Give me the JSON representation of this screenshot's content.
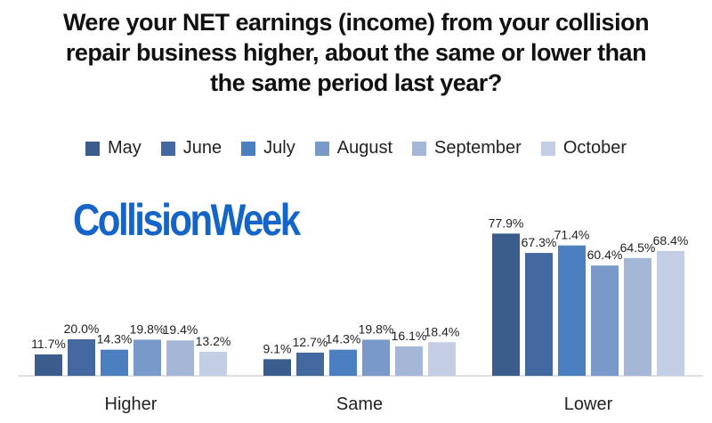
{
  "title_lines": [
    "Were your NET earnings (income) from your collision",
    "repair business higher, about the same or lower than",
    "the same period last year?"
  ],
  "logo_text": "CollisionWeek",
  "colors": {
    "May": "#3b5d8d",
    "June": "#4469a0",
    "July": "#4b7fc0",
    "August": "#7899c9",
    "September": "#a5b7d6",
    "October": "#c3cde4",
    "logo": "#1565c9"
  },
  "chart_data": {
    "type": "bar",
    "title": "Were your NET earnings (income) from your collision repair business higher, about the same or lower than the same period last year?",
    "categories": [
      "Higher",
      "Same",
      "Lower"
    ],
    "series": [
      {
        "name": "May",
        "values": [
          11.7,
          9.1,
          77.9
        ]
      },
      {
        "name": "June",
        "values": [
          20.0,
          12.7,
          67.3
        ]
      },
      {
        "name": "July",
        "values": [
          14.3,
          14.3,
          71.4
        ]
      },
      {
        "name": "August",
        "values": [
          19.8,
          19.8,
          60.4
        ]
      },
      {
        "name": "September",
        "values": [
          19.4,
          16.1,
          64.5
        ]
      },
      {
        "name": "October",
        "values": [
          13.2,
          18.4,
          68.4
        ]
      }
    ],
    "value_format": "%",
    "ylim": [
      0,
      100
    ],
    "legend_position": "top",
    "grid": false
  }
}
